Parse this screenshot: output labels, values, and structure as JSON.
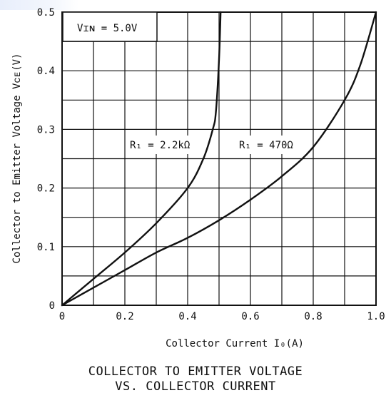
{
  "chart_data": {
    "type": "line",
    "title": [
      "COLLECTOR TO EMITTER VOLTAGE",
      "VS. COLLECTOR CURRENT"
    ],
    "xlabel": "Collector Current I₀(A)",
    "ylabel": "Collector to Emitter Voltage Vᴄᴇ(V)",
    "xlim": [
      0,
      1.0
    ],
    "ylim": [
      0,
      0.5
    ],
    "xticks": [
      0,
      0.2,
      0.4,
      0.6,
      0.8,
      1.0
    ],
    "xtick_labels": [
      "0",
      "0.2",
      "0.4",
      "0.6",
      "0.8",
      "1.0"
    ],
    "yticks": [
      0,
      0.1,
      0.2,
      0.3,
      0.4,
      0.5
    ],
    "ytick_labels": [
      "0",
      "0.1",
      "0.2",
      "0.3",
      "0.4",
      "0.5"
    ],
    "grid": true,
    "annotations": {
      "vin": "Vɪɴ = 5.0V",
      "r1_22k": "R₁ = 2.2kΩ",
      "r1_470": "R₁ = 470Ω"
    },
    "series": [
      {
        "name": "R₁ = 2.2kΩ",
        "x": [
          0,
          0.1,
          0.2,
          0.3,
          0.4,
          0.45,
          0.48,
          0.49,
          0.5,
          0.505
        ],
        "y": [
          0,
          0.045,
          0.09,
          0.14,
          0.2,
          0.25,
          0.3,
          0.33,
          0.42,
          0.5
        ]
      },
      {
        "name": "R₁ = 470Ω",
        "x": [
          0,
          0.1,
          0.2,
          0.3,
          0.4,
          0.5,
          0.6,
          0.7,
          0.8,
          0.9,
          0.95,
          1.0
        ],
        "y": [
          0,
          0.03,
          0.06,
          0.09,
          0.115,
          0.145,
          0.18,
          0.22,
          0.27,
          0.35,
          0.41,
          0.5
        ]
      }
    ]
  }
}
